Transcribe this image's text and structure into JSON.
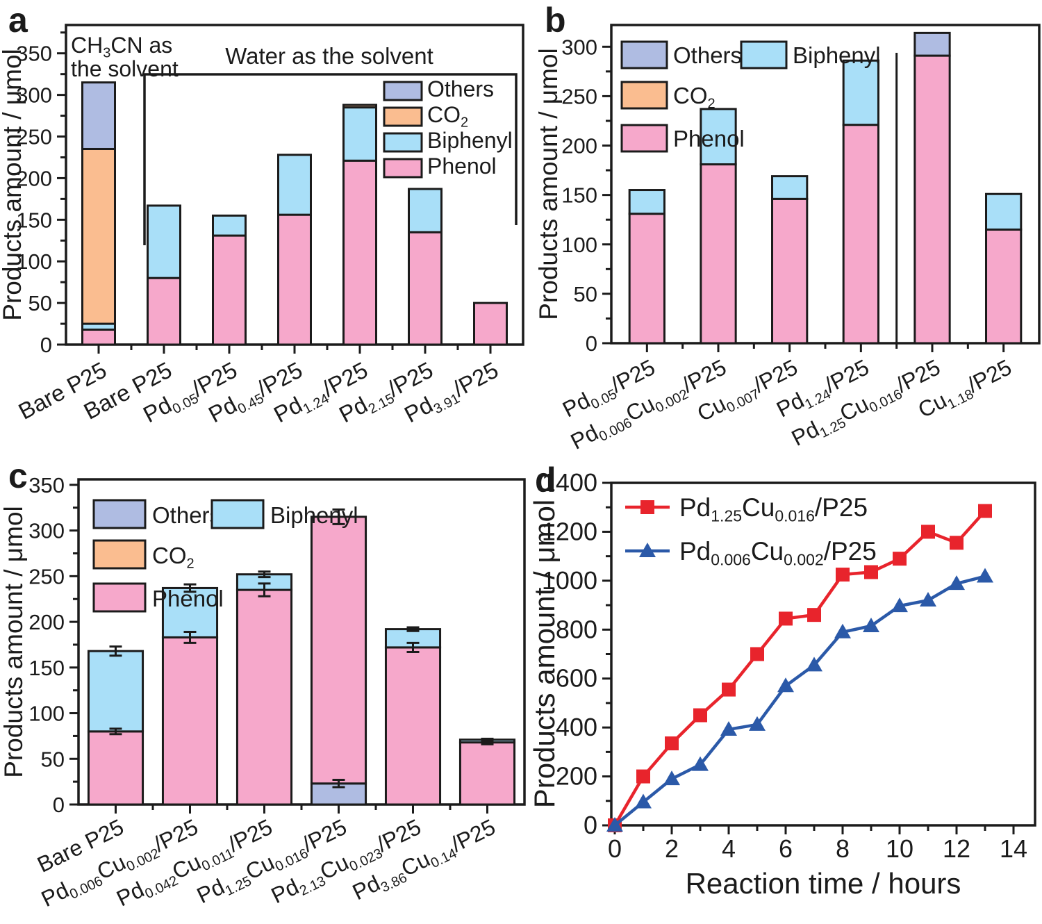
{
  "series_defs": {
    "Others": {
      "label": "Others",
      "color": "#AFBCE2"
    },
    "CO2": {
      "label": "CO~2~",
      "color": "#FABD90"
    },
    "Biphenyl": {
      "label": "Biphenyl",
      "color": "#A9DFF8"
    },
    "Phenol": {
      "label": "Phenol",
      "color": "#F6A8CB"
    }
  },
  "ink_color": "#1b1b1b",
  "chart_data": [
    {
      "id": "a",
      "letter": "a",
      "type": "bar",
      "stacked": true,
      "ylabel": "Products amount / μmol",
      "ylim": [
        0,
        384
      ],
      "yticks": [
        0,
        50,
        100,
        150,
        200,
        250,
        300,
        350
      ],
      "ytick_minor_step": 25,
      "categories": [
        "Bare P25",
        "Bare P25",
        "Pd~0.05~/P25",
        "Pd~0.45~/P25",
        "Pd~1.24~/P25",
        "Pd~2.15~/P25",
        "Pd~3.91~/P25"
      ],
      "legend_items": [
        "Others",
        "CO2",
        "Biphenyl",
        "Phenol"
      ],
      "annotations": [
        {
          "lines": [
            "CH~3~CN as",
            "the solvent"
          ]
        },
        {
          "lines": [
            "Water as the solvent"
          ]
        }
      ],
      "bars": [
        {
          "segments": [
            [
              "Phenol",
              18
            ],
            [
              "Biphenyl",
              7
            ],
            [
              "CO2",
              210
            ],
            [
              "Others",
              80
            ]
          ]
        },
        {
          "segments": [
            [
              "Phenol",
              80
            ],
            [
              "Biphenyl",
              87
            ]
          ]
        },
        {
          "segments": [
            [
              "Phenol",
              131
            ],
            [
              "Biphenyl",
              24
            ]
          ]
        },
        {
          "segments": [
            [
              "Phenol",
              156
            ],
            [
              "Biphenyl",
              72
            ]
          ]
        },
        {
          "segments": [
            [
              "Phenol",
              221
            ],
            [
              "Biphenyl",
              64
            ],
            [
              "CO2",
              3
            ]
          ]
        },
        {
          "segments": [
            [
              "Phenol",
              135
            ],
            [
              "Biphenyl",
              52
            ]
          ]
        },
        {
          "segments": [
            [
              "Phenol",
              50
            ]
          ]
        }
      ]
    },
    {
      "id": "b",
      "letter": "b",
      "type": "bar",
      "stacked": true,
      "ylabel": "Products amount / μmol",
      "ylim": [
        0,
        322
      ],
      "yticks": [
        0,
        50,
        100,
        150,
        200,
        250,
        300
      ],
      "ytick_minor_step": 25,
      "categories": [
        "Pd~0.05~/P25",
        "Pd~0.006~Cu~0.002~/P25",
        "Cu~0.007~/P25",
        "Pd~1.24~/P25",
        "Pd~1.25~Cu~0.016~/P25",
        "Cu~1.18~/P25"
      ],
      "legend_items": [
        "Others",
        "Biphenyl",
        "CO2",
        "Phenol"
      ],
      "divider_between_categories": [
        3,
        4
      ],
      "bars": [
        {
          "segments": [
            [
              "Phenol",
              131
            ],
            [
              "Biphenyl",
              24
            ]
          ]
        },
        {
          "segments": [
            [
              "Phenol",
              181
            ],
            [
              "Biphenyl",
              56
            ]
          ]
        },
        {
          "segments": [
            [
              "Phenol",
              146
            ],
            [
              "Biphenyl",
              23
            ]
          ]
        },
        {
          "segments": [
            [
              "Phenol",
              221
            ],
            [
              "Biphenyl",
              65
            ]
          ]
        },
        {
          "segments": [
            [
              "Phenol",
              291
            ],
            [
              "Others",
              23
            ]
          ]
        },
        {
          "segments": [
            [
              "Phenol",
              115
            ],
            [
              "Biphenyl",
              36
            ]
          ]
        }
      ]
    },
    {
      "id": "c",
      "letter": "c",
      "type": "bar",
      "stacked": true,
      "ylabel": "Products amount / μmol",
      "ylim": [
        0,
        356
      ],
      "yticks": [
        0,
        50,
        100,
        150,
        200,
        250,
        300,
        350
      ],
      "ytick_minor_step": 25,
      "categories": [
        "Bare P25",
        "Pd~0.006~Cu~0.002~/P25",
        "Pd~0.042~Cu~0.011~/P25",
        "Pd~1.25~Cu~0.016~/P25",
        "Pd~2.13~Cu~0.023~/P25",
        "Pd~3.86~Cu~0.14~/P25"
      ],
      "legend_items": [
        "Others",
        "Biphenyl",
        "CO2",
        "Phenol"
      ],
      "bars": [
        {
          "segments": [
            [
              "Phenol",
              80
            ],
            [
              "Biphenyl",
              88
            ]
          ],
          "errors": [
            [
              80,
              3
            ],
            [
              168,
              5
            ]
          ]
        },
        {
          "segments": [
            [
              "Phenol",
              183
            ],
            [
              "Biphenyl",
              54
            ]
          ],
          "errors": [
            [
              183,
              6
            ],
            [
              237,
              4
            ]
          ]
        },
        {
          "segments": [
            [
              "Phenol",
              235
            ],
            [
              "Biphenyl",
              17
            ]
          ],
          "errors": [
            [
              235,
              7
            ],
            [
              252,
              3
            ]
          ]
        },
        {
          "segments": [
            [
              "Others",
              23
            ],
            [
              "Phenol",
              292
            ]
          ],
          "errors": [
            [
              23,
              4
            ],
            [
              315,
              8
            ]
          ]
        },
        {
          "segments": [
            [
              "Phenol",
              172
            ],
            [
              "Biphenyl",
              20
            ]
          ],
          "errors": [
            [
              172,
              5
            ],
            [
              192,
              2
            ]
          ]
        },
        {
          "segments": [
            [
              "Phenol",
              68
            ],
            [
              "Biphenyl",
              3
            ]
          ],
          "errors": [
            [
              68,
              2
            ],
            [
              71,
              1
            ]
          ]
        }
      ]
    },
    {
      "id": "d",
      "letter": "d",
      "type": "line",
      "xlabel": "Reaction time / hours",
      "ylabel": "Products amount / μmol",
      "xlim": [
        0,
        14.75
      ],
      "ylim": [
        0,
        1400
      ],
      "xticks": [
        0,
        2,
        4,
        6,
        8,
        10,
        12,
        14
      ],
      "xtick_minor_step": 1,
      "yticks": [
        0,
        200,
        400,
        600,
        800,
        1000,
        1200,
        1400
      ],
      "ytick_minor_step": 100,
      "x": [
        0,
        1,
        2,
        3,
        4,
        5,
        6,
        7,
        8,
        9,
        10,
        11,
        12,
        13
      ],
      "series": [
        {
          "name": "Pd~1.25~Cu~0.016~/P25",
          "color": "#E8242C",
          "marker": "square",
          "values": [
            0,
            200,
            335,
            450,
            555,
            700,
            845,
            860,
            1025,
            1035,
            1090,
            1200,
            1155,
            1285
          ]
        },
        {
          "name": "Pd~0.006~Cu~0.002~/P25",
          "color": "#2B59A8",
          "marker": "triangle",
          "values": [
            0,
            95,
            190,
            248,
            392,
            412,
            570,
            655,
            790,
            815,
            897,
            920,
            988,
            1018
          ]
        }
      ]
    }
  ]
}
